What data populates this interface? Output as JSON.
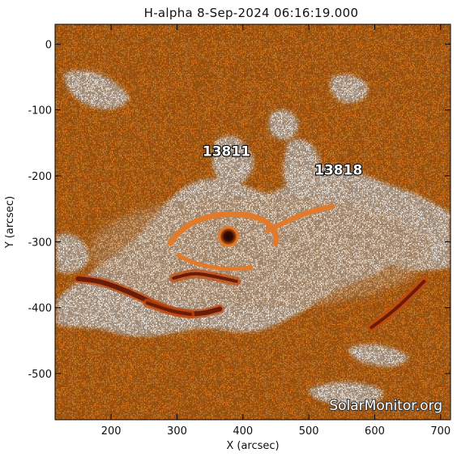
{
  "title": "H-alpha   8-Sep-2024 06:16:19.000",
  "x_axis": {
    "label": "X (arcsec)",
    "range": [
      115,
      715
    ],
    "ticks": [
      200,
      300,
      400,
      500,
      600,
      700
    ]
  },
  "y_axis": {
    "label": "Y (arcsec)",
    "range": [
      -570,
      30
    ],
    "ticks": [
      0,
      -100,
      -200,
      -300,
      -400,
      -500
    ]
  },
  "active_regions": [
    {
      "label": "13811",
      "x": 375,
      "y": -170
    },
    {
      "label": "13818",
      "x": 545,
      "y": -198
    }
  ],
  "sunspot": {
    "x": 378,
    "y": -292
  },
  "filaments": [
    {
      "points": [
        [
          150,
          -356
        ],
        [
          185,
          -360
        ],
        [
          225,
          -375
        ],
        [
          265,
          -394
        ],
        [
          300,
          -408
        ],
        [
          335,
          -410
        ],
        [
          365,
          -402
        ]
      ]
    },
    {
      "points": [
        [
          255,
          -393
        ],
        [
          290,
          -405
        ],
        [
          320,
          -410
        ]
      ]
    },
    {
      "points": [
        [
          295,
          -355
        ],
        [
          325,
          -347
        ],
        [
          355,
          -352
        ],
        [
          390,
          -360
        ]
      ]
    },
    {
      "points": [
        [
          595,
          -430
        ],
        [
          625,
          -408
        ],
        [
          650,
          -385
        ],
        [
          675,
          -360
        ]
      ]
    }
  ],
  "watermark": "SolarMonitor.org",
  "colors": {
    "chromosphere": "#e8761f",
    "chromosphere_dark": "#b9490a",
    "plage": "#ffffff",
    "plage_warm": "#fde6cf",
    "filament": "#6a1c06"
  }
}
